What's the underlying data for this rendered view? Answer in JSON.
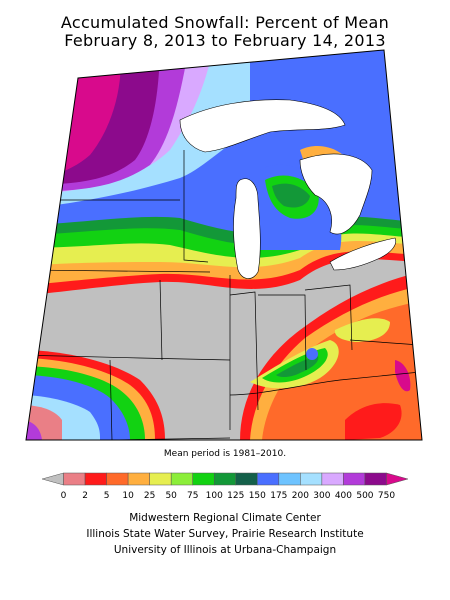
{
  "title": {
    "line1": "Accumulated Snowfall: Percent of Mean",
    "line2": "February 8, 2013 to February 14, 2013"
  },
  "note": "Mean period is 1981–2010.",
  "legend": {
    "labels": [
      "0",
      "2",
      "5",
      "10",
      "25",
      "50",
      "75",
      "100",
      "125",
      "150",
      "175",
      "200",
      "300",
      "400",
      "500",
      "750"
    ],
    "colors": [
      "#c0c0c0",
      "#ea7f86",
      "#ff1b1b",
      "#ff6a2a",
      "#ffaf3f",
      "#e6ee50",
      "#8cee3a",
      "#12d212",
      "#139838",
      "#14604a",
      "#4a6fff",
      "#6ec3ff",
      "#a5e0ff",
      "#d9a9ff",
      "#b23bd9",
      "#8c0a8c",
      "#d80a8c"
    ]
  },
  "credits": {
    "line1": "Midwestern Regional Climate Center",
    "line2": "Illinois State Water Survey, Prairie Research Institute",
    "line3": "University of Illinois at Urbana-Champaign"
  }
}
